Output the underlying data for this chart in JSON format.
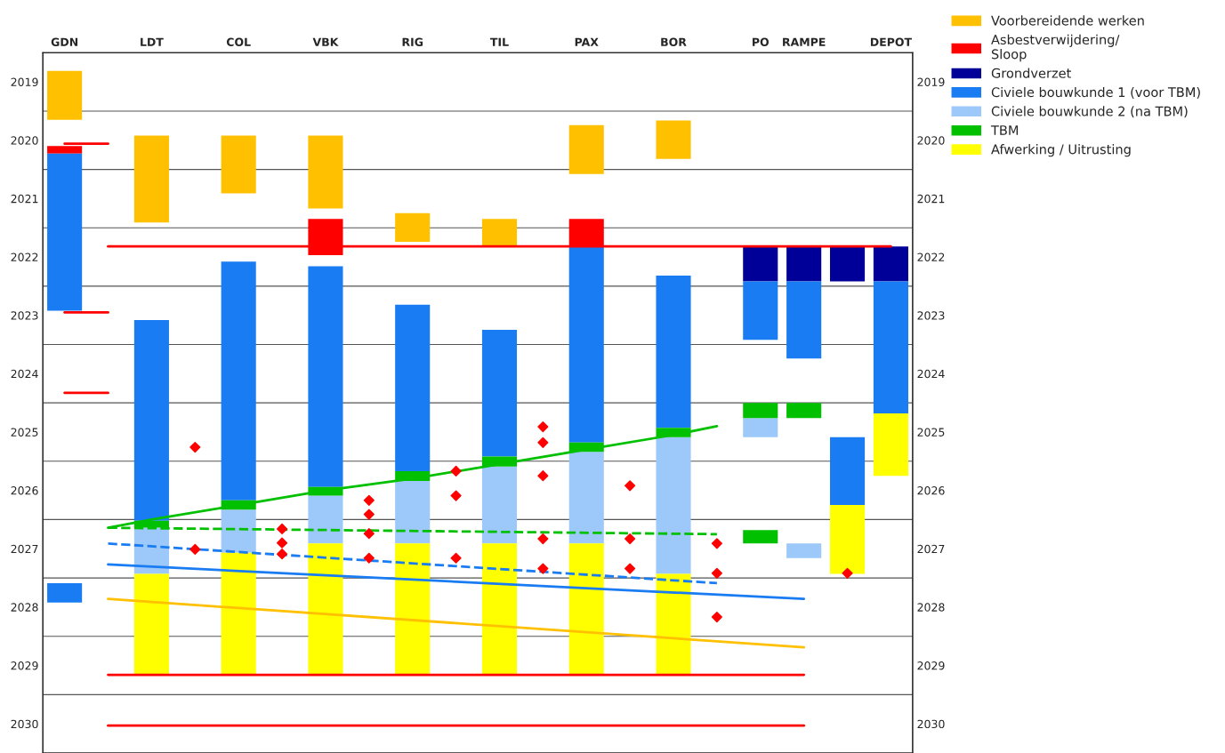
{
  "chart_data": {
    "type": "bar",
    "categories": [
      "GDN",
      null,
      "LDT",
      null,
      "COL",
      null,
      "VBK",
      null,
      "RIG",
      null,
      "TIL",
      null,
      "PAX",
      null,
      "BOR",
      null,
      "PO",
      "RAMPE",
      null,
      "DEPOT"
    ],
    "ylim": [
      2030.5,
      2018.5
    ],
    "yticks": [
      {
        "value": 2018.5,
        "label": null
      },
      2019,
      {
        "value": 2019.5,
        "label": null
      },
      2020,
      {
        "value": 2020.5,
        "label": null
      },
      2021,
      {
        "value": 2021.5,
        "label": null
      },
      2022,
      {
        "value": 2022.5,
        "label": null
      },
      2023,
      {
        "value": 2023.5,
        "label": null
      },
      2024,
      {
        "value": 2024.5,
        "label": null
      },
      2025,
      {
        "value": 2025.5,
        "label": null
      },
      2026,
      {
        "value": 2026.5,
        "label": null
      },
      2027,
      {
        "value": 2027.5,
        "label": null
      },
      2028,
      {
        "value": 2028.5,
        "label": null
      },
      2029,
      {
        "value": 2029.5,
        "label": null
      },
      2030
    ],
    "y2lim": [
      2030.5,
      2018.5
    ],
    "y2ticks": [
      2019,
      2020,
      2021,
      2022,
      2023,
      2024,
      2025,
      2026,
      2027,
      2028,
      2029,
      2030
    ],
    "grid": "y",
    "legend": "top right",
    "series": [
      {
        "name": "Voorbereidende werken",
        "color": "#ffc000",
        "base": [
          2018.81,
          null,
          2019.92,
          null,
          2019.92,
          null,
          2019.92,
          null,
          2021.25,
          null,
          2021.35,
          null,
          2019.74,
          null,
          2019.66,
          null,
          null,
          null,
          null,
          null
        ],
        "values": [
          0.84,
          null,
          1.49,
          null,
          0.99,
          null,
          1.25,
          null,
          0.49,
          null,
          0.47,
          null,
          0.84,
          null,
          0.66,
          null,
          null,
          null,
          null,
          null
        ]
      },
      {
        "name": "Asbestverwijdering/\nSloop",
        "color": "#ff0000",
        "base": [
          2020.1,
          null,
          null,
          null,
          null,
          null,
          2021.35,
          null,
          null,
          null,
          null,
          null,
          2021.35,
          null,
          null,
          null,
          null,
          null,
          null,
          null
        ],
        "values": [
          0.13,
          null,
          null,
          null,
          null,
          null,
          0.62,
          null,
          null,
          null,
          null,
          null,
          0.47,
          null,
          null,
          null,
          null,
          null,
          null,
          null
        ]
      },
      {
        "name": "Grondverzet",
        "color": "#000099",
        "base": [
          null,
          null,
          null,
          null,
          null,
          null,
          null,
          null,
          null,
          null,
          null,
          null,
          null,
          null,
          null,
          null,
          2021.82,
          2021.82,
          2021.82,
          2021.82
        ],
        "values": [
          null,
          null,
          null,
          null,
          null,
          null,
          null,
          null,
          null,
          null,
          null,
          null,
          null,
          null,
          null,
          null,
          0.6,
          0.6,
          0.6,
          0.6
        ]
      },
      {
        "name": "Civiele bouwkunde 1 (voor TBM)",
        "color": "#1a7cf2",
        "base": [
          2020.23,
          null,
          2023.08,
          null,
          2022.08,
          null,
          2022.16,
          null,
          2022.82,
          null,
          2023.25,
          null,
          2021.82,
          null,
          2022.32,
          null,
          2022.42,
          2022.42,
          null,
          2022.42
        ],
        "values": [
          2.69,
          null,
          3.44,
          null,
          4.09,
          null,
          3.78,
          null,
          2.85,
          null,
          2.17,
          null,
          3.36,
          null,
          2.61,
          null,
          1.0,
          1.32,
          null,
          2.26
        ]
      },
      {
        "name": "Civiele bouwkunde 2 (na TBM)",
        "color": "#9dc8fa",
        "base": [
          null,
          null,
          2026.64,
          null,
          2026.33,
          null,
          2026.09,
          null,
          2025.84,
          null,
          2025.59,
          null,
          2025.34,
          null,
          2025.09,
          null,
          2024.76,
          2026.91,
          null,
          null
        ],
        "values": [
          null,
          null,
          0.79,
          null,
          0.74,
          null,
          0.82,
          null,
          1.07,
          null,
          1.32,
          null,
          1.57,
          null,
          2.34,
          null,
          0.33,
          0.25,
          null,
          null
        ]
      },
      {
        "name": "TBM",
        "color": "#00c000",
        "base": [
          null,
          null,
          2026.52,
          null,
          2026.17,
          null,
          2025.94,
          null,
          2025.67,
          null,
          2025.42,
          null,
          2025.18,
          null,
          2024.93,
          null,
          2024.5,
          2024.5,
          null,
          null
        ],
        "values": [
          null,
          null,
          0.12,
          null,
          0.16,
          null,
          0.15,
          null,
          0.17,
          null,
          0.17,
          null,
          0.16,
          null,
          0.16,
          null,
          0.26,
          0.26,
          null,
          null
        ]
      },
      {
        "name": "Afwerking / Uitrusting",
        "color": "#ffff00",
        "base": [
          null,
          null,
          2027.43,
          null,
          2027.07,
          null,
          2026.91,
          null,
          2026.91,
          null,
          2026.91,
          null,
          2026.91,
          null,
          2027.43,
          null,
          null,
          null,
          null,
          2024.68
        ],
        "values": [
          null,
          null,
          1.73,
          null,
          2.09,
          null,
          2.25,
          null,
          2.25,
          null,
          2.25,
          null,
          2.25,
          null,
          1.73,
          null,
          null,
          null,
          null,
          1.07
        ]
      },
      {
        "color": "#1a7cf2",
        "base": [
          2027.59,
          null,
          null,
          null,
          null,
          null,
          null,
          null,
          null,
          null,
          null,
          null,
          null,
          null,
          null,
          null,
          null,
          null,
          2025.09,
          null
        ],
        "values": [
          0.33,
          null,
          null,
          null,
          null,
          null,
          null,
          null,
          null,
          null,
          null,
          null,
          null,
          null,
          null,
          null,
          null,
          null,
          1.16,
          null
        ]
      },
      {
        "color": "#ffff00",
        "base": [
          null,
          null,
          null,
          null,
          null,
          null,
          null,
          null,
          null,
          null,
          null,
          null,
          null,
          null,
          null,
          null,
          null,
          null,
          2026.25,
          null
        ],
        "values": [
          null,
          null,
          null,
          null,
          null,
          null,
          null,
          null,
          null,
          null,
          null,
          null,
          null,
          null,
          null,
          null,
          null,
          null,
          1.18,
          null
        ]
      },
      {
        "color": "#00c000",
        "base": [
          null,
          null,
          null,
          null,
          null,
          null,
          null,
          null,
          null,
          null,
          null,
          null,
          null,
          null,
          null,
          null,
          2026.68,
          null,
          null,
          null
        ],
        "values": [
          null,
          null,
          null,
          null,
          null,
          null,
          null,
          null,
          null,
          null,
          null,
          null,
          null,
          null,
          null,
          null,
          0.23,
          null,
          null,
          null
        ]
      },
      {
        "type": "line",
        "color": "#00c000",
        "line_style": "solid",
        "values": [
          null,
          2026.64,
          2026.5,
          null,
          2026.25,
          null,
          2026.0,
          null,
          2025.8,
          null,
          2025.55,
          null,
          2025.3,
          null,
          2025.05,
          2024.9,
          null,
          null,
          null,
          null
        ]
      },
      {
        "type": "line",
        "color": "#00c000",
        "line_style": "dashed",
        "values": [
          null,
          2026.64,
          null,
          null,
          null,
          null,
          null,
          null,
          null,
          null,
          null,
          null,
          null,
          null,
          null,
          2026.75,
          null,
          null,
          null,
          null
        ]
      },
      {
        "type": "line",
        "color": "#1a7cf2",
        "line_style": "dashed",
        "values": [
          null,
          2026.91,
          null,
          null,
          null,
          null,
          null,
          null,
          null,
          null,
          null,
          null,
          null,
          null,
          null,
          2027.59,
          null,
          null,
          null,
          null
        ]
      },
      {
        "type": "line",
        "color": "#1a7cf2",
        "line_style": "solid",
        "values": [
          null,
          2027.27,
          null,
          null,
          null,
          null,
          null,
          null,
          null,
          null,
          null,
          null,
          null,
          null,
          null,
          null,
          null,
          2027.86,
          null,
          null
        ]
      },
      {
        "type": "line",
        "color": "#ffc000",
        "line_style": "solid",
        "values": [
          null,
          2027.86,
          null,
          null,
          null,
          null,
          null,
          null,
          null,
          null,
          null,
          null,
          null,
          null,
          null,
          null,
          null,
          2028.69,
          null,
          null
        ]
      },
      {
        "type": "line",
        "color": "#ff0000",
        "line_style": "solid",
        "values": [
          null,
          2021.82,
          null,
          null,
          null,
          null,
          null,
          null,
          null,
          null,
          null,
          null,
          null,
          null,
          null,
          null,
          null,
          null,
          null,
          2021.82
        ]
      },
      {
        "type": "line",
        "color": "#ff0000",
        "line_style": "solid",
        "values": [
          2020.06,
          2020.06,
          null,
          null,
          null,
          null,
          null,
          null,
          null,
          null,
          null,
          null,
          null,
          null,
          null,
          null,
          null,
          null,
          null,
          null
        ]
      },
      {
        "type": "line",
        "color": "#ff0000",
        "line_style": "solid",
        "values": [
          2022.95,
          2022.95,
          null,
          null,
          null,
          null,
          null,
          null,
          null,
          null,
          null,
          null,
          null,
          null,
          null,
          null,
          null,
          null,
          null,
          null
        ]
      },
      {
        "type": "line",
        "color": "#ff0000",
        "line_style": "solid",
        "values": [
          2024.33,
          2024.33,
          null,
          null,
          null,
          null,
          null,
          null,
          null,
          null,
          null,
          null,
          null,
          null,
          null,
          null,
          null,
          null,
          null,
          null
        ]
      },
      {
        "type": "line",
        "color": "#ff0000",
        "line_style": "solid",
        "values": [
          null,
          2029.16,
          null,
          null,
          null,
          null,
          null,
          null,
          null,
          null,
          null,
          null,
          null,
          null,
          null,
          null,
          null,
          2029.16,
          null,
          null
        ]
      },
      {
        "type": "line",
        "color": "#ff0000",
        "line_style": "solid",
        "values": [
          null,
          2030.03,
          null,
          null,
          null,
          null,
          null,
          null,
          null,
          null,
          null,
          null,
          null,
          null,
          null,
          null,
          null,
          2030.03,
          null,
          null
        ]
      },
      {
        "type": "scatter",
        "color": "#ff0000",
        "marker": "diamond",
        "values": [
          null,
          null,
          null,
          2025.26,
          null,
          2026.66,
          null,
          2026.17,
          null,
          2025.67,
          null,
          2024.91,
          null,
          2025.92,
          null,
          2026.91,
          null,
          null,
          2027.42,
          null
        ]
      },
      {
        "type": "scatter",
        "color": "#ff0000",
        "marker": "diamond",
        "values": [
          null,
          null,
          null,
          2027.01,
          null,
          2026.9,
          null,
          2026.41,
          null,
          2026.09,
          null,
          2025.18,
          null,
          2026.83,
          null,
          2027.42,
          null,
          null,
          null,
          null
        ]
      },
      {
        "type": "scatter",
        "color": "#ff0000",
        "marker": "diamond",
        "values": [
          null,
          null,
          null,
          null,
          null,
          2027.09,
          null,
          2026.74,
          null,
          2027.16,
          null,
          2025.75,
          null,
          2027.34,
          null,
          2028.17,
          null,
          null,
          null,
          null
        ]
      },
      {
        "type": "scatter",
        "color": "#ff0000",
        "marker": "diamond",
        "values": [
          null,
          null,
          null,
          null,
          null,
          null,
          null,
          2027.16,
          null,
          null,
          null,
          2026.83,
          null,
          null,
          null,
          null,
          null,
          null,
          null,
          null
        ]
      },
      {
        "type": "scatter",
        "color": "#ff0000",
        "marker": "diamond",
        "values": [
          null,
          null,
          null,
          null,
          null,
          null,
          null,
          null,
          null,
          null,
          null,
          2027.34,
          null,
          null,
          null,
          null,
          null,
          null,
          null,
          null
        ]
      }
    ]
  }
}
